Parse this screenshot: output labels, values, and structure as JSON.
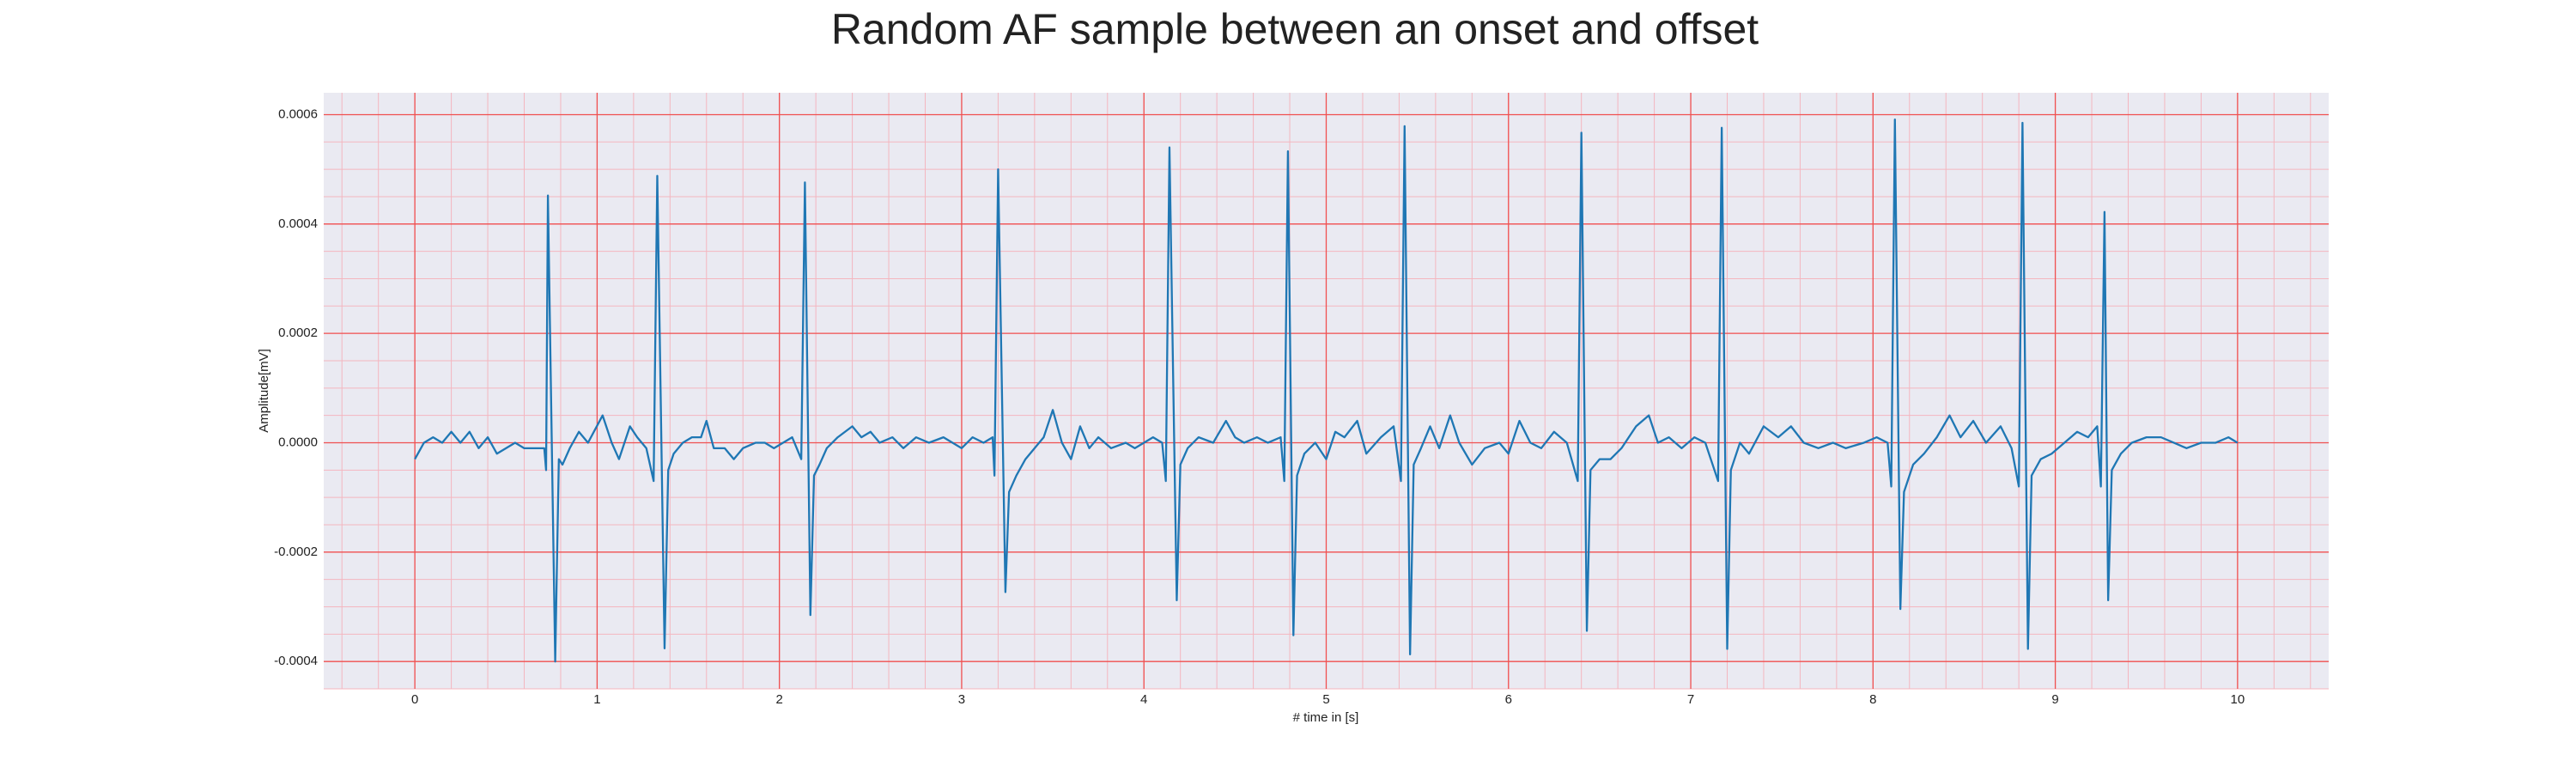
{
  "chart_data": {
    "type": "line",
    "title": "Random AF sample between an onset and offset",
    "xlabel": "# time in [s]",
    "ylabel": "Amplitude[mV]",
    "color": "#1f77b4",
    "grid": true,
    "minor_xstep": 0.2,
    "minor_ystep": 5e-05,
    "xlim": [
      -0.5,
      10.5
    ],
    "ylim": [
      -0.00045,
      0.00064
    ],
    "xticks": [
      0,
      1,
      2,
      3,
      4,
      5,
      6,
      7,
      8,
      9,
      10
    ],
    "yticks": [
      -0.0004,
      -0.0002,
      {
        "value": 0,
        "label": "0.0000"
      },
      0.0002,
      0.0004,
      0.0006
    ],
    "x": [
      0,
      0.05,
      0.1,
      0.15,
      0.2,
      0.25,
      0.3,
      0.35,
      0.4,
      0.45,
      0.5,
      0.55,
      0.6,
      0.65,
      0.71,
      0.72,
      0.73,
      0.77,
      0.79,
      0.81,
      0.85,
      0.9,
      0.95,
      1.03,
      1.08,
      1.12,
      1.18,
      1.22,
      1.27,
      1.31,
      1.33,
      1.37,
      1.39,
      1.42,
      1.47,
      1.52,
      1.57,
      1.6,
      1.64,
      1.7,
      1.75,
      1.8,
      1.87,
      1.92,
      1.97,
      2.02,
      2.07,
      2.12,
      2.14,
      2.17,
      2.19,
      2.22,
      2.26,
      2.32,
      2.4,
      2.45,
      2.5,
      2.55,
      2.62,
      2.68,
      2.75,
      2.82,
      2.9,
      3,
      3.06,
      3.12,
      3.17,
      3.18,
      3.2,
      3.24,
      3.26,
      3.3,
      3.35,
      3.4,
      3.45,
      3.5,
      3.55,
      3.6,
      3.65,
      3.7,
      3.75,
      3.82,
      3.9,
      3.95,
      4.05,
      4.1,
      4.12,
      4.14,
      4.18,
      4.2,
      4.24,
      4.3,
      4.38,
      4.45,
      4.5,
      4.55,
      4.62,
      4.68,
      4.75,
      4.77,
      4.79,
      4.82,
      4.84,
      4.88,
      4.94,
      5,
      5.05,
      5.1,
      5.17,
      5.22,
      5.3,
      5.37,
      5.41,
      5.43,
      5.46,
      5.48,
      5.52,
      5.57,
      5.62,
      5.68,
      5.73,
      5.8,
      5.87,
      5.95,
      6,
      6.06,
      6.12,
      6.18,
      6.25,
      6.32,
      6.38,
      6.4,
      6.43,
      6.45,
      6.5,
      6.56,
      6.62,
      6.7,
      6.77,
      6.82,
      6.88,
      6.95,
      7.02,
      7.08,
      7.15,
      7.17,
      7.2,
      7.22,
      7.27,
      7.32,
      7.4,
      7.48,
      7.55,
      7.62,
      7.7,
      7.78,
      7.85,
      7.95,
      8.02,
      8.08,
      8.1,
      8.12,
      8.15,
      8.17,
      8.22,
      8.28,
      8.35,
      8.42,
      8.48,
      8.55,
      8.62,
      8.7,
      8.76,
      8.8,
      8.82,
      8.85,
      8.87,
      8.92,
      8.98,
      9.05,
      9.12,
      9.18,
      9.23,
      9.25,
      9.27,
      9.29,
      9.31,
      9.36,
      9.42,
      9.5,
      9.58,
      9.65,
      9.72,
      9.8,
      9.88,
      9.95,
      10
    ],
    "values": [
      -3e-05,
      0,
      1e-05,
      0,
      2e-05,
      0,
      2e-05,
      -1e-05,
      1e-05,
      -2e-05,
      -1e-05,
      0,
      -1e-05,
      -1e-05,
      -1e-05,
      -5e-05,
      0.000452,
      -0.0004,
      -3e-05,
      -4e-05,
      -1e-05,
      2e-05,
      0,
      5e-05,
      0,
      -3e-05,
      3e-05,
      1e-05,
      -1e-05,
      -7e-05,
      0.000488,
      -0.000376,
      -5e-05,
      -2e-05,
      0,
      1e-05,
      1e-05,
      4e-05,
      -1e-05,
      -1e-05,
      -3e-05,
      -1e-05,
      0,
      0,
      -1e-05,
      0,
      1e-05,
      -3e-05,
      0.000476,
      -0.000315,
      -6e-05,
      -4e-05,
      -1e-05,
      1e-05,
      3e-05,
      1e-05,
      2e-05,
      0,
      1e-05,
      -1e-05,
      1e-05,
      0,
      1e-05,
      -1e-05,
      1e-05,
      0,
      1e-05,
      -6e-05,
      0.0005,
      -0.000273,
      -9e-05,
      -6e-05,
      -3e-05,
      -1e-05,
      1e-05,
      6e-05,
      0,
      -3e-05,
      3e-05,
      -1e-05,
      1e-05,
      -1e-05,
      0,
      -1e-05,
      1e-05,
      0,
      -7e-05,
      0.00054,
      -0.000288,
      -4e-05,
      -1e-05,
      1e-05,
      0,
      4e-05,
      1e-05,
      0,
      1e-05,
      0,
      1e-05,
      -7e-05,
      0.000533,
      -0.000352,
      -6e-05,
      -2e-05,
      0,
      -3e-05,
      2e-05,
      1e-05,
      4e-05,
      -2e-05,
      1e-05,
      3e-05,
      -7e-05,
      0.000579,
      -0.000387,
      -4e-05,
      -1e-05,
      3e-05,
      -1e-05,
      5e-05,
      0,
      -4e-05,
      -1e-05,
      0,
      -2e-05,
      4e-05,
      0,
      -1e-05,
      2e-05,
      0,
      -7e-05,
      0.000567,
      -0.000344,
      -5e-05,
      -3e-05,
      -3e-05,
      -1e-05,
      3e-05,
      5e-05,
      0,
      1e-05,
      -1e-05,
      1e-05,
      0,
      -7e-05,
      0.000576,
      -0.000377,
      -5e-05,
      0,
      -2e-05,
      3e-05,
      1e-05,
      3e-05,
      0,
      -1e-05,
      0,
      -1e-05,
      0,
      1e-05,
      0,
      -8e-05,
      0.000591,
      -0.000304,
      -9e-05,
      -4e-05,
      -2e-05,
      1e-05,
      5e-05,
      1e-05,
      4e-05,
      0,
      3e-05,
      -1e-05,
      -8e-05,
      0.000585,
      -0.000377,
      -6e-05,
      -3e-05,
      -2e-05,
      0,
      2e-05,
      1e-05,
      3e-05,
      -8e-05,
      0.000422,
      -0.000288,
      -5e-05,
      -2e-05,
      0,
      1e-05,
      1e-05,
      0,
      -1e-05,
      0,
      0,
      1e-05,
      0
    ]
  }
}
